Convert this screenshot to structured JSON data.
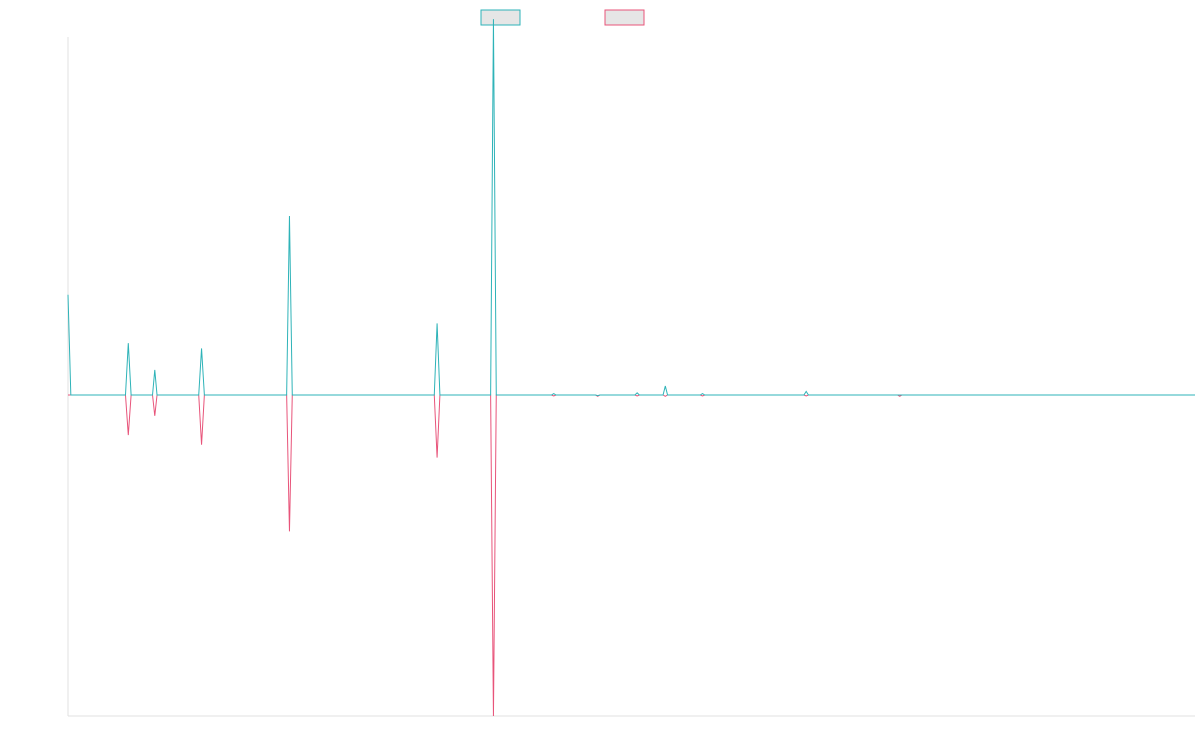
{
  "chart_data": {
    "type": "line",
    "title": "",
    "xlabel": "",
    "ylabel": "",
    "grid": false,
    "legend_position": "top-center",
    "xlim": [
      0,
      1000
    ],
    "ylim": [
      -100,
      100
    ],
    "series": [
      {
        "color": "#2eb3b8",
        "points": [
          [
            0,
            28
          ],
          [
            2.5,
            0
          ],
          [
            51,
            0
          ],
          [
            53.5,
            14.5
          ],
          [
            56,
            0
          ],
          [
            75,
            0
          ],
          [
            77,
            7
          ],
          [
            79,
            0
          ],
          [
            116,
            0
          ],
          [
            118.5,
            13
          ],
          [
            121,
            0
          ],
          [
            194,
            0
          ],
          [
            196.5,
            50
          ],
          [
            199,
            0
          ],
          [
            325,
            0
          ],
          [
            327.5,
            20
          ],
          [
            330,
            0
          ],
          [
            375,
            0
          ],
          [
            377.5,
            105
          ],
          [
            380,
            0
          ],
          [
            429,
            0
          ],
          [
            431,
            0.4
          ],
          [
            433,
            0
          ],
          [
            468,
            0
          ],
          [
            470,
            -0.2
          ],
          [
            472,
            0
          ],
          [
            503,
            0
          ],
          [
            505,
            0.6
          ],
          [
            507,
            0
          ],
          [
            528,
            0
          ],
          [
            530,
            2.5
          ],
          [
            532,
            0
          ],
          [
            561,
            0
          ],
          [
            563,
            0.4
          ],
          [
            565,
            0
          ],
          [
            653,
            0
          ],
          [
            655,
            1
          ],
          [
            657,
            0
          ],
          [
            736,
            0
          ],
          [
            738,
            0
          ],
          [
            740,
            0
          ],
          [
            1000,
            0
          ]
        ]
      },
      {
        "color": "#e8547a",
        "points": [
          [
            0,
            0
          ],
          [
            51,
            0
          ],
          [
            53.5,
            -12.5
          ],
          [
            56,
            0
          ],
          [
            75,
            0
          ],
          [
            77,
            -6.5
          ],
          [
            79,
            0
          ],
          [
            116,
            0
          ],
          [
            118.5,
            -15.5
          ],
          [
            121,
            0
          ],
          [
            194,
            0
          ],
          [
            196.5,
            -42.5
          ],
          [
            199,
            0
          ],
          [
            325,
            0
          ],
          [
            327.5,
            -19.5
          ],
          [
            330,
            0
          ],
          [
            375,
            0
          ],
          [
            377.5,
            -100
          ],
          [
            380,
            0
          ],
          [
            429,
            0
          ],
          [
            431,
            -0.3
          ],
          [
            433,
            0
          ],
          [
            468,
            0
          ],
          [
            470,
            -0.4
          ],
          [
            472,
            0
          ],
          [
            503,
            0
          ],
          [
            505,
            -0.3
          ],
          [
            507,
            0
          ],
          [
            528,
            0
          ],
          [
            530,
            -0.4
          ],
          [
            532,
            0
          ],
          [
            561,
            0
          ],
          [
            563,
            -0.3
          ],
          [
            565,
            0
          ],
          [
            653,
            0
          ],
          [
            655,
            -0.3
          ],
          [
            657,
            0
          ],
          [
            736,
            0
          ],
          [
            738,
            -0.4
          ],
          [
            740,
            0
          ],
          [
            1000,
            0
          ]
        ]
      }
    ]
  }
}
